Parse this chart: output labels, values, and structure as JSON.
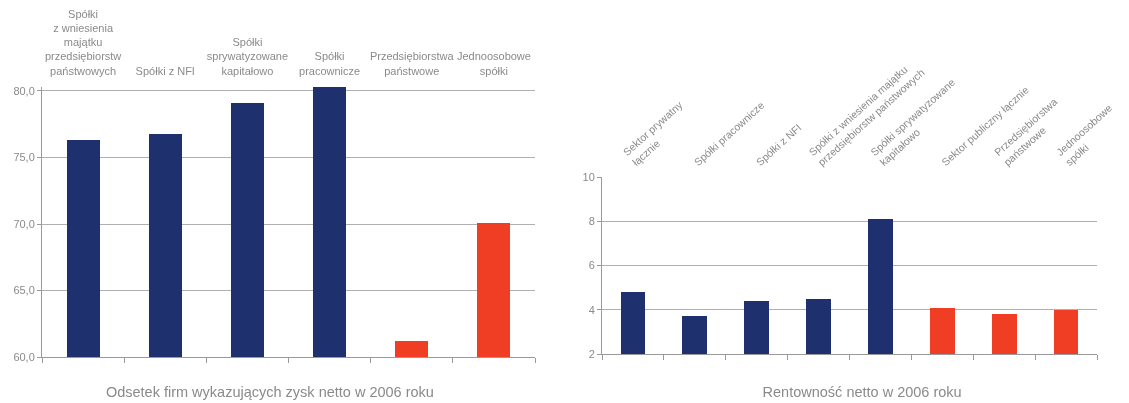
{
  "chart_data": [
    {
      "type": "bar",
      "title": "Odsetek firm wykazujących zysk netto w 2006 roku",
      "categories": [
        "Spółki\nz wniesienia\nmajątku\nprzedsiębiorstw\npaństwowych",
        "Spółki z NFI",
        "Spółki\nsprywatyzowane\nkapitałowo",
        "Spółki\npracownicze",
        "Przedsiębiorstwa\npaństwowe",
        "Jednoosobowe\nspółki"
      ],
      "values": [
        76.3,
        76.8,
        79.1,
        80.3,
        61.2,
        70.1
      ],
      "colors": [
        "#1f306e",
        "#1f306e",
        "#1f306e",
        "#1f306e",
        "#ef3e23",
        "#ef3e23"
      ],
      "ylim": [
        60,
        80.3
      ],
      "yticks": [
        {
          "value": 60,
          "label": "60,0"
        },
        {
          "value": 65,
          "label": "65,0"
        },
        {
          "value": 70,
          "label": "70,0"
        },
        {
          "value": 75,
          "label": "75,0"
        },
        {
          "value": 80,
          "label": "80,0"
        }
      ],
      "grid": "y"
    },
    {
      "type": "bar",
      "title": "Rentowność netto w 2006 roku",
      "categories": [
        "Sektor prywatny\nłącznie",
        "Spółki pracownicze",
        "Spółki z NFI",
        "Spółki z wniesienia majątku\nprzedsiębiorstw państwowych",
        "Spółki sprywatyzowane\nkapitałowo",
        "Sektor publiczny łącznie",
        "Przedsiębiorstwa\npaństwowe",
        "Jednoosobowe\nspółki"
      ],
      "values": [
        4.8,
        3.7,
        4.4,
        4.5,
        8.1,
        4.1,
        3.8,
        4.0
      ],
      "colors": [
        "#1f306e",
        "#1f306e",
        "#1f306e",
        "#1f306e",
        "#1f306e",
        "#ef3e23",
        "#ef3e23",
        "#ef3e23"
      ],
      "ylim": [
        2,
        10
      ],
      "yticks": [
        2,
        4,
        6,
        8,
        10
      ],
      "grid": "y"
    }
  ]
}
